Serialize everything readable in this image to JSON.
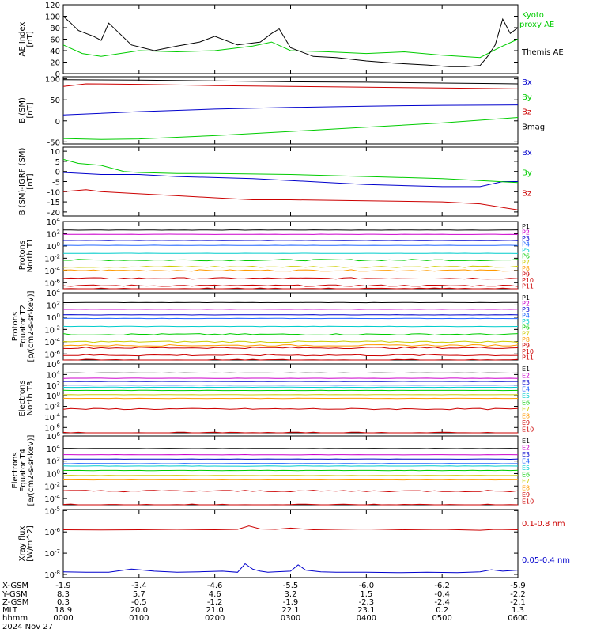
{
  "x_axis": {
    "ticks": [
      "0000",
      "0100",
      "0200",
      "0300",
      "0400",
      "0500",
      "0600"
    ],
    "date": "2024 Nov 27",
    "rows": [
      {
        "label": "X-GSM",
        "values": [
          "-1.9",
          "-3.4",
          "-4.6",
          "-5.5",
          "-6.0",
          "-6.2",
          "-5.9"
        ]
      },
      {
        "label": "Y-GSM",
        "values": [
          "8.3",
          "5.7",
          "4.6",
          "3.2",
          "1.5",
          "-0.4",
          "-2.2"
        ]
      },
      {
        "label": "Z-GSM",
        "values": [
          "0.3",
          "-0.5",
          "-1.2",
          "-1.9",
          "-2.3",
          "-2.4",
          "-2.1"
        ]
      },
      {
        "label": "MLT",
        "values": [
          "18.9",
          "20.0",
          "21.0",
          "22.1",
          "23.1",
          "0.2",
          "1.3"
        ]
      },
      {
        "label": "hhmm",
        "values": [
          "0000",
          "0100",
          "0200",
          "0300",
          "0400",
          "0500",
          "0600"
        ]
      }
    ]
  },
  "chart_data": [
    {
      "type": "line",
      "id": "ae",
      "ylabel": [
        "AE Index",
        "[nT]"
      ],
      "ylim": [
        0,
        120
      ],
      "yticks": [
        "0",
        "20",
        "40",
        "60",
        "80",
        "100",
        "120"
      ],
      "series": [
        {
          "name": "Kyoto proxy AE",
          "color": "#00cc00",
          "x": [
            0,
            0.25,
            0.5,
            1,
            1.5,
            2,
            2.5,
            2.75,
            3,
            3.5,
            4,
            4.5,
            5,
            5.5,
            5.75,
            6
          ],
          "y": [
            50,
            35,
            30,
            40,
            38,
            40,
            48,
            55,
            40,
            38,
            35,
            38,
            32,
            28,
            45,
            60
          ]
        },
        {
          "name": "Themis AE",
          "color": "#000000",
          "x": [
            0,
            0.1,
            0.2,
            0.4,
            0.5,
            0.6,
            0.9,
            1.2,
            1.5,
            1.8,
            2.0,
            2.3,
            2.6,
            2.75,
            2.85,
            3.0,
            3.3,
            3.6,
            4.0,
            4.4,
            4.8,
            5.1,
            5.3,
            5.5,
            5.6,
            5.7,
            5.8,
            5.9,
            6
          ],
          "y": [
            100,
            88,
            75,
            65,
            58,
            88,
            50,
            40,
            48,
            55,
            65,
            50,
            55,
            70,
            78,
            45,
            30,
            28,
            22,
            18,
            15,
            12,
            12,
            14,
            30,
            50,
            95,
            70,
            80
          ]
        }
      ]
    },
    {
      "type": "line",
      "id": "b_sm",
      "ylabel": [
        "B (SM)",
        "[nT]"
      ],
      "ylim": [
        -55,
        105
      ],
      "yticks": [
        "-50",
        "0",
        "50",
        "100"
      ],
      "yticks_values": [
        -50,
        0,
        50,
        100
      ],
      "series": [
        {
          "name": "Bx",
          "color": "#0000cc",
          "x": [
            0,
            1,
            2,
            3,
            4,
            5,
            6
          ],
          "y": [
            14,
            22,
            28,
            32,
            35,
            37,
            38
          ]
        },
        {
          "name": "By",
          "color": "#00cc00",
          "x": [
            0,
            0.5,
            1,
            2,
            3,
            4,
            5,
            6
          ],
          "y": [
            -42,
            -44,
            -43,
            -35,
            -25,
            -15,
            -5,
            8
          ]
        },
        {
          "name": "Bz",
          "color": "#cc0000",
          "x": [
            0,
            0.3,
            1,
            2,
            3,
            4,
            5,
            6
          ],
          "y": [
            82,
            88,
            87,
            84,
            82,
            80,
            78,
            76
          ]
        },
        {
          "name": "Bmag",
          "color": "#000000",
          "x": [
            0,
            1,
            2,
            3,
            4,
            5,
            6
          ],
          "y": [
            98,
            97,
            95,
            93,
            92,
            90,
            88
          ]
        }
      ]
    },
    {
      "type": "line",
      "id": "b_igrf",
      "ylabel": [
        "B (SM)-IGRF (SM)",
        "[nT]"
      ],
      "ylim": [
        -22,
        12
      ],
      "yticks": [
        "-20",
        "-15",
        "-10",
        "-5",
        "0",
        "5",
        "10"
      ],
      "yticks_values": [
        -20,
        -15,
        -10,
        -5,
        0,
        5,
        10
      ],
      "series": [
        {
          "name": "Bx",
          "color": "#0000cc",
          "x": [
            0,
            0.5,
            1,
            1.5,
            2,
            2.5,
            3,
            3.5,
            4,
            4.5,
            5,
            5.5,
            5.8,
            6
          ],
          "y": [
            -0.5,
            -1.5,
            -1.5,
            -2.5,
            -3,
            -3.5,
            -4.5,
            -5.5,
            -6.5,
            -7,
            -7.5,
            -7.5,
            -5,
            -5
          ]
        },
        {
          "name": "By",
          "color": "#00cc00",
          "x": [
            0,
            0.2,
            0.5,
            0.8,
            1.0,
            1.5,
            2,
            3,
            4,
            5,
            5.5,
            6
          ],
          "y": [
            6,
            4,
            3,
            0,
            -0.5,
            -1,
            -1,
            -1.5,
            -2.5,
            -3.5,
            -4.5,
            -5.5
          ]
        },
        {
          "name": "Bz",
          "color": "#cc0000",
          "x": [
            0,
            0.3,
            0.5,
            1,
            1.5,
            2,
            2.5,
            3,
            4,
            5,
            5.5,
            6
          ],
          "y": [
            -10,
            -9,
            -10,
            -11,
            -12,
            -13,
            -14,
            -14,
            -14.5,
            -15,
            -16,
            -19
          ]
        }
      ]
    },
    {
      "type": "line",
      "id": "p_north",
      "ylabel": [
        "Protons",
        "North T1"
      ],
      "log": true,
      "ylim": [
        -7,
        4
      ],
      "yticks": [
        "10^4",
        "10^2",
        "10^0",
        "10^-2",
        "10^-4",
        "10^-6"
      ],
      "yticks_values": [
        4,
        2,
        0,
        -2,
        -4,
        -6
      ],
      "series": [
        {
          "name": "P1",
          "color": "#000000",
          "level": 2.6
        },
        {
          "name": "P2",
          "color": "#cc00cc",
          "level": 1.9
        },
        {
          "name": "P3",
          "color": "#0000cc",
          "level": 0.9
        },
        {
          "name": "P4",
          "color": "#2266ff",
          "level": 0.1
        },
        {
          "name": "P5",
          "color": "#00cccc",
          "level": -1.2
        },
        {
          "name": "P6",
          "color": "#00cc00",
          "level": -2.3
        },
        {
          "name": "P7",
          "color": "#cccc00",
          "level": -3.4
        },
        {
          "name": "P8",
          "color": "#ff9900",
          "level": -4.0
        },
        {
          "name": "P9",
          "color": "#cc0000",
          "level": -5.3
        },
        {
          "name": "P10",
          "color": "#cc0000",
          "level": -6.5
        },
        {
          "name": "P11",
          "color": "#cc0000",
          "level": -7.0
        }
      ]
    },
    {
      "type": "line",
      "id": "p_eq",
      "ylabel": [
        "Protons",
        "Equator T2",
        "[p/(cm2-s-sr-keV)]"
      ],
      "log": true,
      "ylim": [
        -7,
        4
      ],
      "yticks": [
        "10^4",
        "10^2",
        "10^0",
        "10^-2",
        "10^-4",
        "10^-6"
      ],
      "yticks_values": [
        4,
        2,
        0,
        -2,
        -4,
        -6
      ],
      "series": [
        {
          "name": "P1",
          "color": "#000000",
          "level": 2.4
        },
        {
          "name": "P2",
          "color": "#cc00cc",
          "level": 1.3
        },
        {
          "name": "P3",
          "color": "#0000cc",
          "level": 0.4
        },
        {
          "name": "P4",
          "color": "#2266ff",
          "level": -0.2
        },
        {
          "name": "P5",
          "color": "#00cccc",
          "level": -1.5
        },
        {
          "name": "P6",
          "color": "#00cc00",
          "level": -2.8
        },
        {
          "name": "P7",
          "color": "#cccc00",
          "level": -4.0
        },
        {
          "name": "P8",
          "color": "#ff9900",
          "level": -4.6
        },
        {
          "name": "P9",
          "color": "#cc0000",
          "level": -5.0
        },
        {
          "name": "P10",
          "color": "#cc0000",
          "level": -6.2
        },
        {
          "name": "P11",
          "color": "#cc0000",
          "level": -7.0
        }
      ]
    },
    {
      "type": "line",
      "id": "e_north",
      "ylabel": [
        "Electrons",
        "North T3"
      ],
      "log": true,
      "ylim": [
        -7,
        6
      ],
      "yticks": [
        "10^6",
        "10^4",
        "10^2",
        "10^0",
        "10^-2",
        "10^-4",
        "10^-6"
      ],
      "yticks_values": [
        6,
        4,
        2,
        0,
        -2,
        -4,
        -6
      ],
      "series": [
        {
          "name": "E1",
          "color": "#000000",
          "level": 4.3
        },
        {
          "name": "E2",
          "color": "#cc00cc",
          "level": 3.3
        },
        {
          "name": "E3",
          "color": "#0000cc",
          "level": 2.7
        },
        {
          "name": "E4",
          "color": "#2266ff",
          "level": 2.0
        },
        {
          "name": "E5",
          "color": "#00cccc",
          "level": 1.6
        },
        {
          "name": "E6",
          "color": "#00cc00",
          "level": 1.0
        },
        {
          "name": "E7",
          "color": "#cccc00",
          "level": 0.2
        },
        {
          "name": "E8",
          "color": "#ff9900",
          "level": -0.5
        },
        {
          "name": "E9",
          "color": "#cc0000",
          "level": -2.5
        },
        {
          "name": "E10",
          "color": "#cc0000",
          "level": -7.0
        }
      ]
    },
    {
      "type": "line",
      "id": "e_eq",
      "ylabel": [
        "Electrons",
        "Equator T4",
        "[e/(cm2-s-sr-keV)]"
      ],
      "log": true,
      "ylim": [
        -5,
        6
      ],
      "yticks": [
        "10^6",
        "10^4",
        "10^2",
        "10^0",
        "10^-2",
        "10^-4"
      ],
      "yticks_values": [
        6,
        4,
        2,
        0,
        -2,
        -4
      ],
      "series": [
        {
          "name": "E1",
          "color": "#000000",
          "level": 4.0
        },
        {
          "name": "E2",
          "color": "#cc00cc",
          "level": 3.0
        },
        {
          "name": "E3",
          "color": "#0000cc",
          "level": 2.3
        },
        {
          "name": "E4",
          "color": "#2266ff",
          "level": 1.6
        },
        {
          "name": "E5",
          "color": "#00cccc",
          "level": 1.2
        },
        {
          "name": "E6",
          "color": "#00cc00",
          "level": 0.5
        },
        {
          "name": "E7",
          "color": "#cccc00",
          "level": -0.3
        },
        {
          "name": "E8",
          "color": "#ff9900",
          "level": -1.0
        },
        {
          "name": "E9",
          "color": "#cc0000",
          "level": -2.8
        },
        {
          "name": "E10",
          "color": "#cc0000",
          "level": -5.0
        }
      ]
    },
    {
      "type": "line",
      "id": "xray",
      "ylabel": [
        "Xray flux",
        "[W/m^2]"
      ],
      "log": true,
      "ylim": [
        -8.15,
        -4.95
      ],
      "yticks": [
        "10^-5",
        "10^-6",
        "10^-7",
        "10^-8"
      ],
      "yticks_values": [
        -5,
        -6,
        -7,
        -8
      ],
      "series": [
        {
          "name": "0.1-0.8 nm",
          "color": "#cc0000",
          "x": [
            0,
            0.5,
            1,
            1.5,
            2,
            2.3,
            2.45,
            2.6,
            2.8,
            3.0,
            3.3,
            3.6,
            4.0,
            4.5,
            5.0,
            5.5,
            5.7,
            6
          ],
          "y": [
            -5.9,
            -5.91,
            -5.9,
            -5.88,
            -5.9,
            -5.88,
            -5.72,
            -5.86,
            -5.88,
            -5.82,
            -5.9,
            -5.88,
            -5.86,
            -5.9,
            -5.88,
            -5.92,
            -5.88,
            -5.9
          ]
        },
        {
          "name": "0.05-0.4 nm",
          "color": "#0000cc",
          "x": [
            0,
            0.3,
            0.6,
            0.9,
            1.2,
            1.5,
            1.8,
            2.1,
            2.3,
            2.4,
            2.5,
            2.6,
            2.7,
            2.8,
            3.0,
            3.1,
            3.2,
            3.4,
            3.6,
            4.0,
            4.4,
            4.8,
            5.2,
            5.5,
            5.65,
            5.8,
            6
          ],
          "y": [
            -7.88,
            -7.9,
            -7.9,
            -7.75,
            -7.85,
            -7.9,
            -7.88,
            -7.85,
            -7.9,
            -7.5,
            -7.75,
            -7.85,
            -7.9,
            -7.88,
            -7.85,
            -7.55,
            -7.8,
            -7.88,
            -7.9,
            -7.9,
            -7.92,
            -7.9,
            -7.92,
            -7.88,
            -7.78,
            -7.85,
            -7.8
          ]
        }
      ]
    }
  ]
}
